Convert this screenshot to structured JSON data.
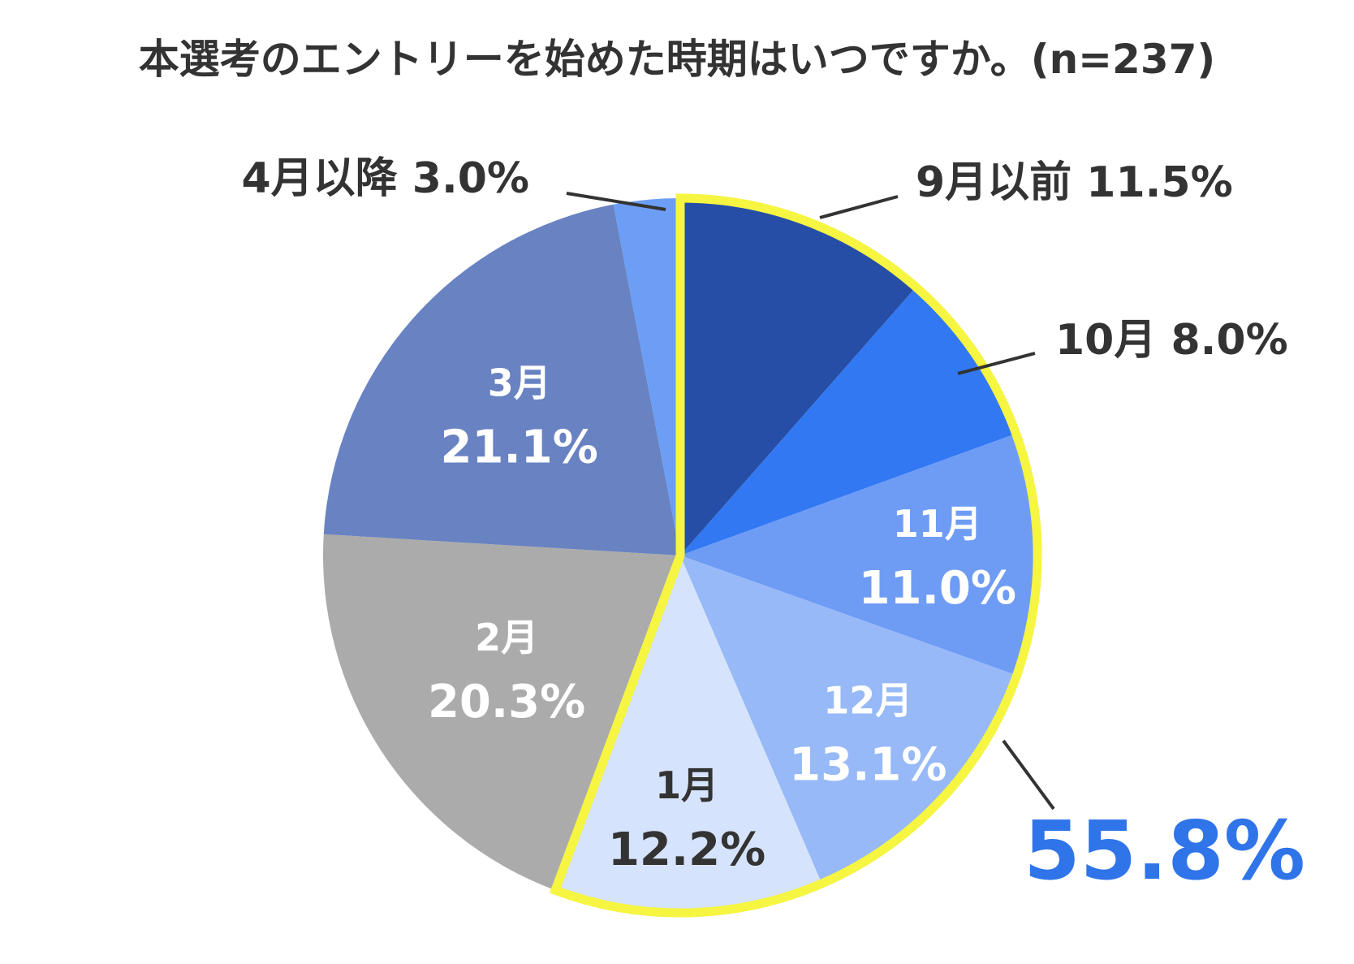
{
  "chart_data": {
    "type": "pie",
    "title": "本選考のエントリーを始めた時期はいつですか。(n=237)",
    "slices": [
      {
        "label": "9月以前",
        "value": 11.5,
        "value_text": "11.5%",
        "color": "#264ea6",
        "label_color": "#333333",
        "placement": "outside"
      },
      {
        "label": "10月",
        "value": 8.0,
        "value_text": "8.0%",
        "color": "#3278f2",
        "label_color": "#333333",
        "placement": "outside"
      },
      {
        "label": "11月",
        "value": 11.0,
        "value_text": "11.0%",
        "color": "#6e9cf5",
        "label_color": "#ffffff",
        "placement": "inside"
      },
      {
        "label": "12月",
        "value": 13.1,
        "value_text": "13.1%",
        "color": "#97b9f7",
        "label_color": "#ffffff",
        "placement": "inside"
      },
      {
        "label": "1月",
        "value": 12.2,
        "value_text": "12.2%",
        "color": "#d6e3fc",
        "label_color": "#333333",
        "placement": "inside"
      },
      {
        "label": "2月",
        "value": 20.3,
        "value_text": "20.3%",
        "color": "#ababab",
        "label_color": "#ffffff",
        "placement": "inside"
      },
      {
        "label": "3月",
        "value": 21.1,
        "value_text": "21.1%",
        "color": "#6882c2",
        "label_color": "#ffffff",
        "placement": "inside"
      },
      {
        "label": "4月以降",
        "value": 3.0,
        "value_text": "3.0%",
        "color": "#6c9ef5",
        "label_color": "#333333",
        "placement": "outside"
      }
    ],
    "highlight": {
      "slices": [
        "9月以前",
        "10月",
        "11月",
        "12月",
        "1月"
      ],
      "value_text": "55.8%",
      "outline_color": "#f5f542",
      "text_color": "#2f74e8"
    },
    "start_angle": "12 o'clock",
    "direction": "clockwise"
  }
}
